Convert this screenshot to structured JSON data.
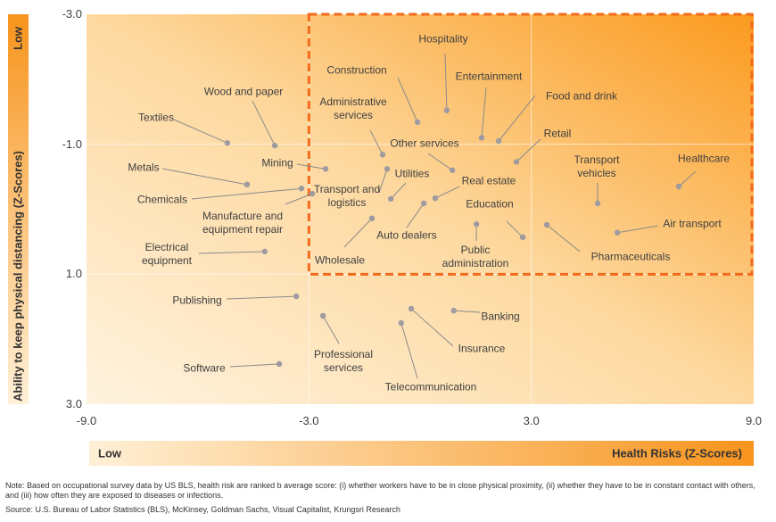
{
  "chart_data": {
    "type": "scatter",
    "x_label": "Health Risks (Z-Scores)",
    "y_label": "Ability to keep physical distancing (Z-Scores)",
    "x_low_label": "Low",
    "y_low_label": "Low",
    "color": "#9e9aa0",
    "xlim": [
      -9,
      9
    ],
    "ylim": [
      3,
      -3
    ],
    "xticks": [
      {
        "value": -9,
        "label": "-9.0"
      },
      {
        "value": -3,
        "label": "-3.0"
      },
      {
        "value": 3,
        "label": "3.0"
      },
      {
        "value": 9,
        "label": "9.0"
      }
    ],
    "yticks": [
      {
        "value": -3,
        "label": "-3.0"
      },
      {
        "value": -1,
        "label": "-1.0"
      },
      {
        "value": 1,
        "label": "1.0"
      },
      {
        "value": 3,
        "label": "3.0"
      }
    ],
    "grid": true,
    "labels": [
      "Textiles",
      "Wood and paper",
      "Metals",
      "Mining",
      "Chemicals",
      "Manufacture and equipment repair",
      "Electrical equipment",
      "Publishing",
      "Software",
      "Professional services",
      "Construction",
      "Hospitality",
      "Entertainment",
      "Food and drink",
      "Retail",
      "Administrative services",
      "Other services",
      "Utilities",
      "Transport and logistics",
      "Real estate",
      "Auto dealers",
      "Wholesale",
      "Education",
      "Public administration",
      "Transport vehicles",
      "Healthcare",
      "Air transport",
      "Pharmaceuticals",
      "Banking",
      "Insurance",
      "Telecommunication"
    ],
    "x": [
      -5.2,
      -3.92,
      -4.67,
      -2.55,
      -3.2,
      -2.91,
      -4.19,
      -3.34,
      -3.8,
      -2.62,
      -0.07,
      0.72,
      1.66,
      2.12,
      2.6,
      -1.01,
      0.87,
      -0.79,
      -0.89,
      0.41,
      0.1,
      -1.3,
      2.77,
      1.52,
      4.79,
      6.98,
      5.32,
      3.42,
      0.91,
      -0.24,
      -0.51
    ],
    "y": [
      -1.02,
      -0.98,
      -0.38,
      -0.62,
      -0.32,
      -0.24,
      0.65,
      1.34,
      2.38,
      1.64,
      -1.34,
      -1.52,
      -1.1,
      -1.05,
      -0.73,
      -0.84,
      -0.6,
      -0.16,
      -0.62,
      -0.17,
      -0.09,
      0.14,
      0.43,
      0.23,
      -0.09,
      -0.35,
      0.36,
      0.24,
      1.56,
      1.53,
      1.75
    ]
  },
  "note": "Note: Based on occupational survey data by US BLS, health risk are ranked b average score: (i) whether workers have to be in close physical proximity, (ii) whether they have to be in constant contact with others, and (iii) how often they are exposed to diseases or infections.",
  "source": "Source: U.S. Bureau of Labor Statistics (BLS), McKinsey, Goldman Sachs, Visual Capitalist, Krungsri Research"
}
